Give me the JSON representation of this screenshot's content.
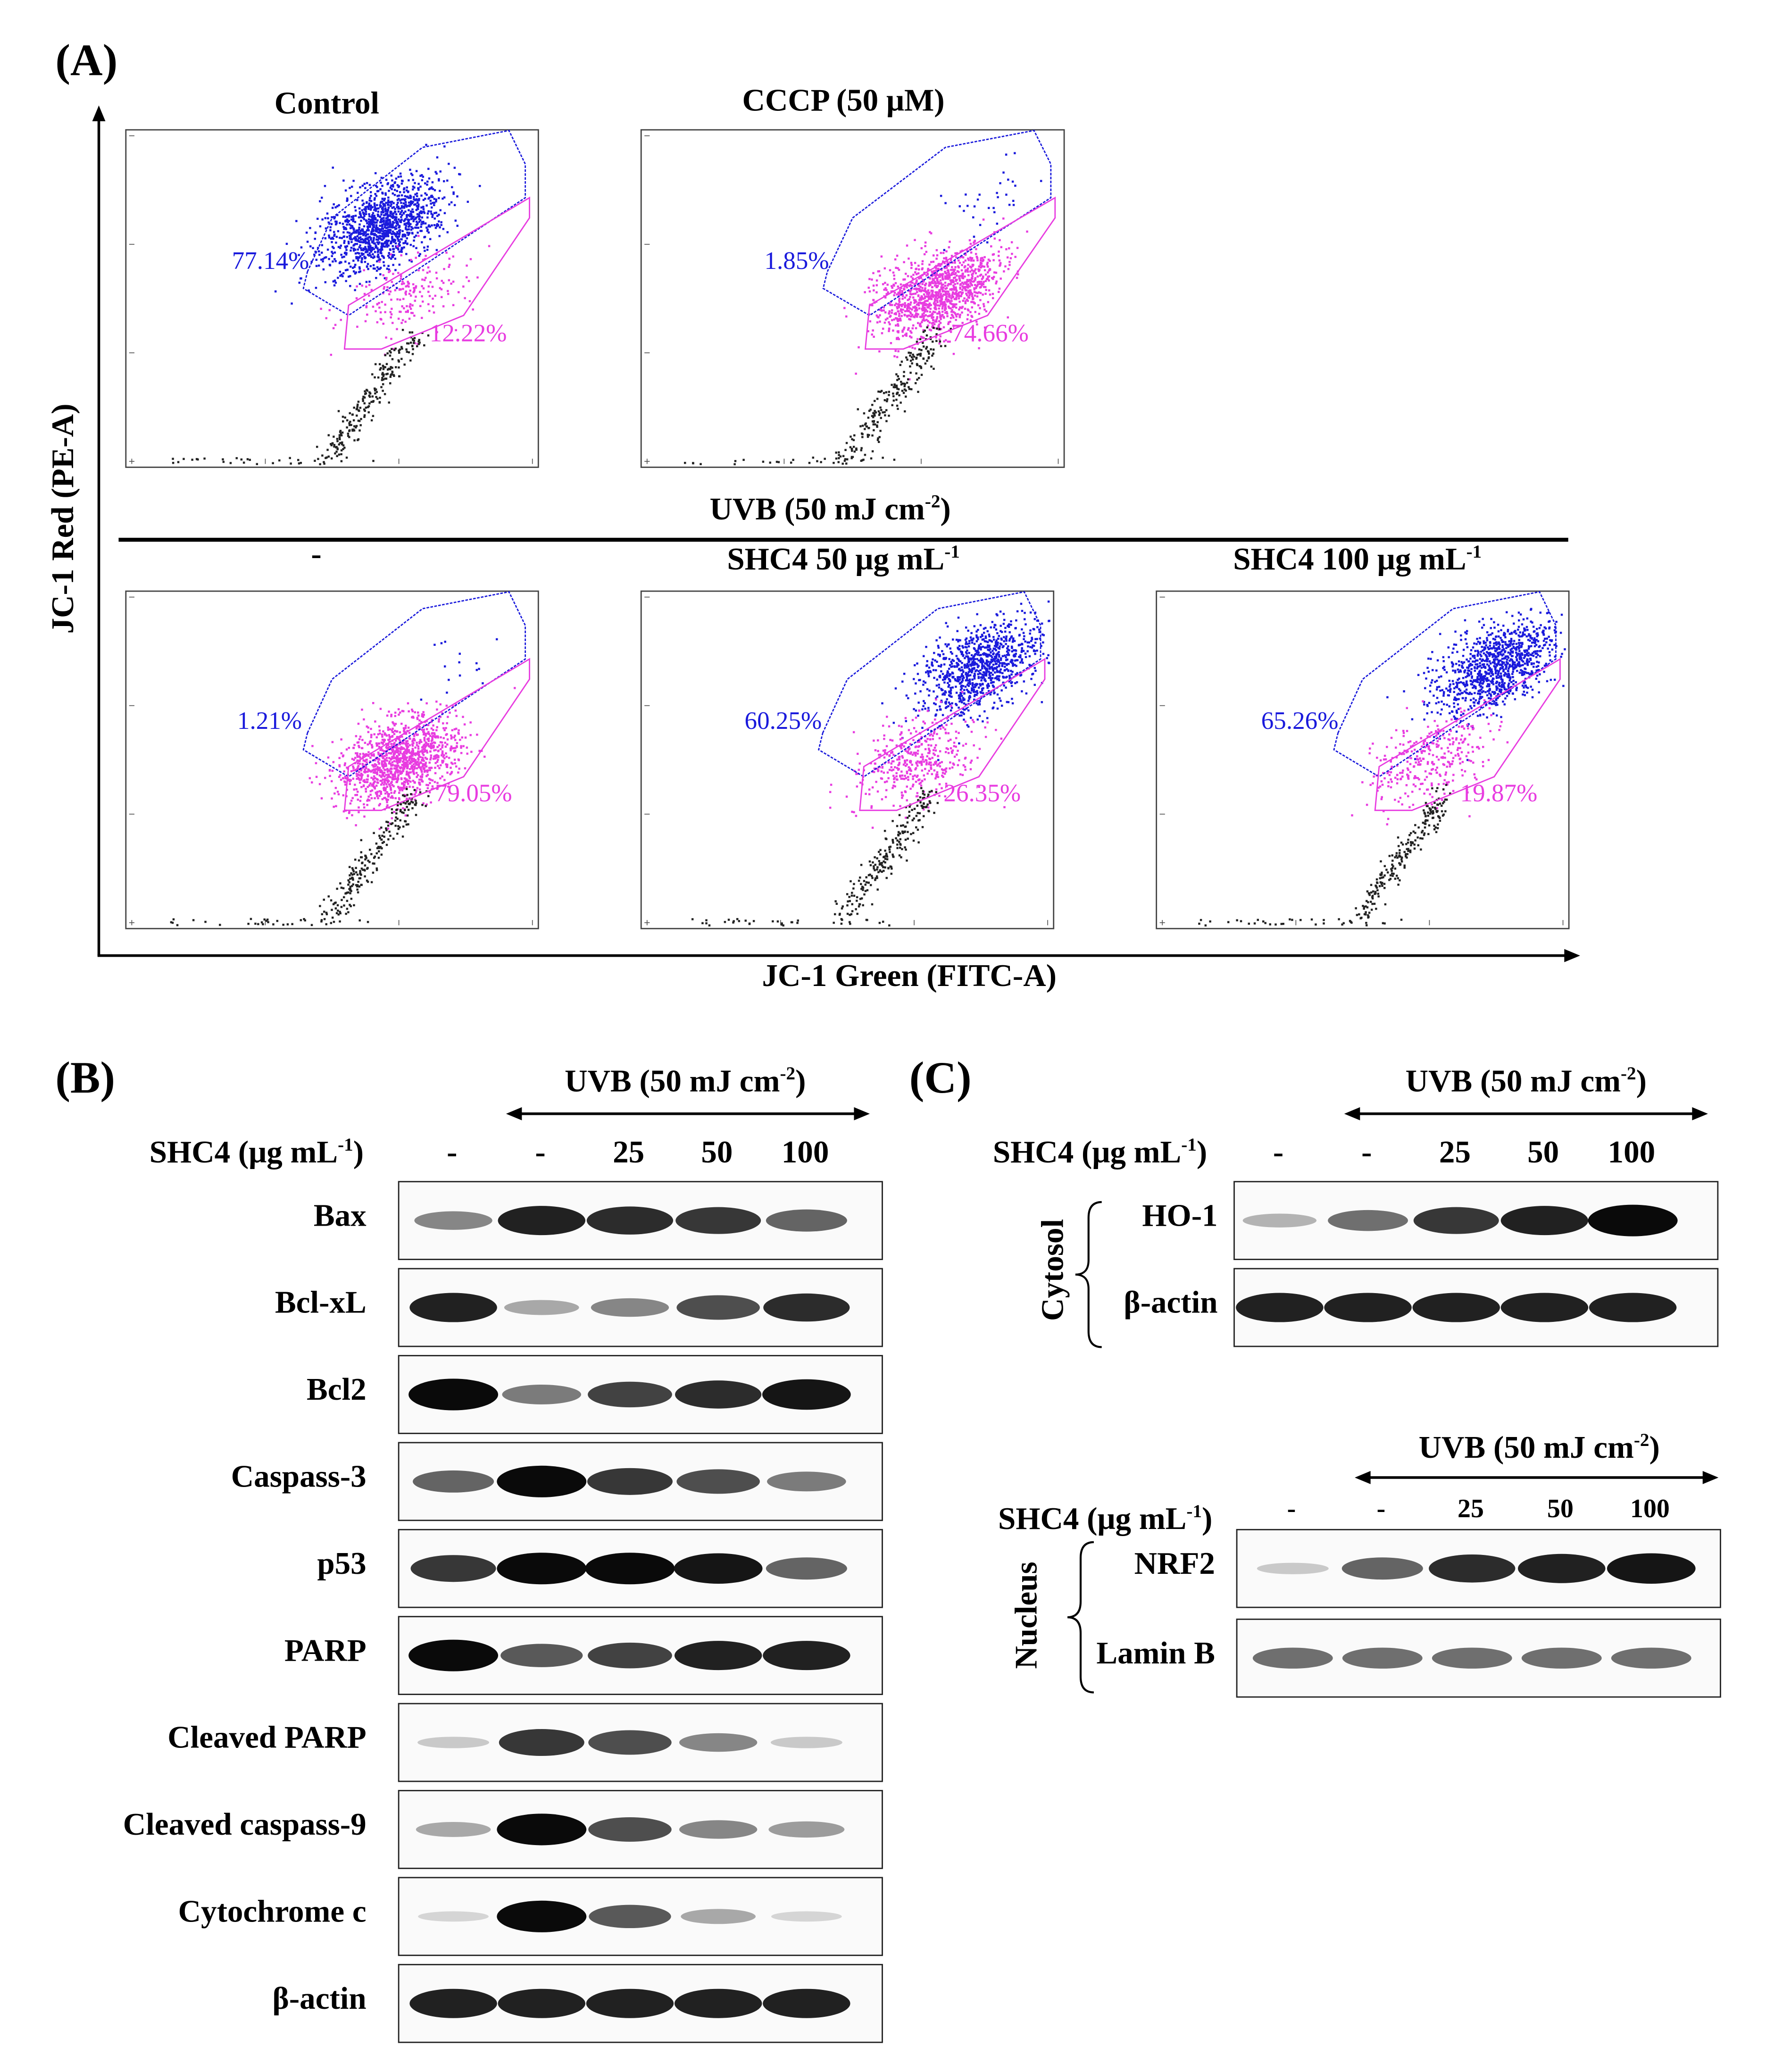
{
  "panel_a": {
    "label": "(A)",
    "y_axis_label": "JC-1 Red (PE-A)",
    "x_axis_label": "JC-1 Green (FITC-A)",
    "uvb_label": "UVB (50 mJ cm",
    "uvb_sup": "-2",
    "uvb_close": ")",
    "plots": [
      {
        "title": "Control",
        "title_sup": "",
        "title_tail": "",
        "blue_pct": "77.14%",
        "pink_pct": "12.22%",
        "blue_frac": 0.77,
        "pink_frac": 0.12
      },
      {
        "title": "CCCP (50 μM)",
        "title_sup": "",
        "title_tail": "",
        "blue_pct": "1.85%",
        "pink_pct": "74.66%",
        "blue_frac": 0.02,
        "pink_frac": 0.75
      },
      {
        "title": "-",
        "title_sup": "",
        "title_tail": "",
        "blue_pct": "1.21%",
        "pink_pct": "79.05%",
        "blue_frac": 0.01,
        "pink_frac": 0.79
      },
      {
        "title": "SHC4 50 μg mL",
        "title_sup": "-1",
        "title_tail": "",
        "blue_pct": "60.25%",
        "pink_pct": "26.35%",
        "blue_frac": 0.6,
        "pink_frac": 0.26
      },
      {
        "title": "SHC4 100 μg mL",
        "title_sup": "-1",
        "title_tail": "",
        "blue_pct": "65.26%",
        "pink_pct": "19.87%",
        "blue_frac": 0.65,
        "pink_frac": 0.2
      }
    ],
    "colors": {
      "blue": "#1a1adc",
      "pink": "#e83ce0",
      "black": "#222222"
    }
  },
  "panel_b": {
    "label": "(B)",
    "uvb_label": "UVB (50 mJ cm",
    "uvb_sup": "-2",
    "uvb_close": ")",
    "shc4_label": "SHC4 (μg mL",
    "shc4_sup": "-1",
    "shc4_close": ")",
    "doses": [
      "-",
      "-",
      "25",
      "50",
      "100"
    ],
    "rows": [
      {
        "name": "Bax",
        "intensity": [
          0.45,
          0.9,
          0.85,
          0.8,
          0.6
        ]
      },
      {
        "name": "Bcl-xL",
        "intensity": [
          0.9,
          0.3,
          0.45,
          0.7,
          0.85
        ]
      },
      {
        "name": "Bcl2",
        "intensity": [
          1.0,
          0.5,
          0.75,
          0.85,
          0.95
        ]
      },
      {
        "name": "Caspass-3",
        "intensity": [
          0.6,
          1.0,
          0.8,
          0.7,
          0.5
        ]
      },
      {
        "name": "p53",
        "intensity": [
          0.8,
          1.0,
          1.0,
          0.95,
          0.6
        ]
      },
      {
        "name": "PARP",
        "intensity": [
          1.0,
          0.65,
          0.75,
          0.9,
          0.9
        ]
      },
      {
        "name": "Cleaved PARP",
        "intensity": [
          0.15,
          0.8,
          0.7,
          0.45,
          0.15
        ]
      },
      {
        "name": "Cleaved caspass-9",
        "intensity": [
          0.3,
          1.0,
          0.7,
          0.45,
          0.35
        ]
      },
      {
        "name": "Cytochrome c",
        "intensity": [
          0.1,
          1.0,
          0.65,
          0.3,
          0.1
        ]
      },
      {
        "name": "β-actin",
        "intensity": [
          0.9,
          0.9,
          0.9,
          0.9,
          0.9
        ]
      }
    ]
  },
  "panel_c": {
    "label": "(C)",
    "uvb_label": "UVB (50 mJ cm",
    "uvb_sup": "-2",
    "uvb_close": ")",
    "shc4_label": "SHC4 (μg mL",
    "shc4_sup": "-1",
    "shc4_close": ")",
    "doses": [
      "-",
      "-",
      "25",
      "50",
      "100"
    ],
    "cytosol": {
      "group": "Cytosol",
      "rows": [
        {
          "name": "HO-1",
          "intensity": [
            0.25,
            0.55,
            0.8,
            0.9,
            1.0
          ]
        },
        {
          "name": "β-actin",
          "intensity": [
            0.9,
            0.9,
            0.9,
            0.9,
            0.9
          ]
        }
      ]
    },
    "nucleus": {
      "group": "Nucleus",
      "rows": [
        {
          "name": "NRF2",
          "intensity": [
            0.15,
            0.6,
            0.85,
            0.9,
            0.95
          ]
        },
        {
          "name": "Lamin B",
          "intensity": [
            0.55,
            0.55,
            0.55,
            0.55,
            0.55
          ]
        }
      ]
    }
  }
}
